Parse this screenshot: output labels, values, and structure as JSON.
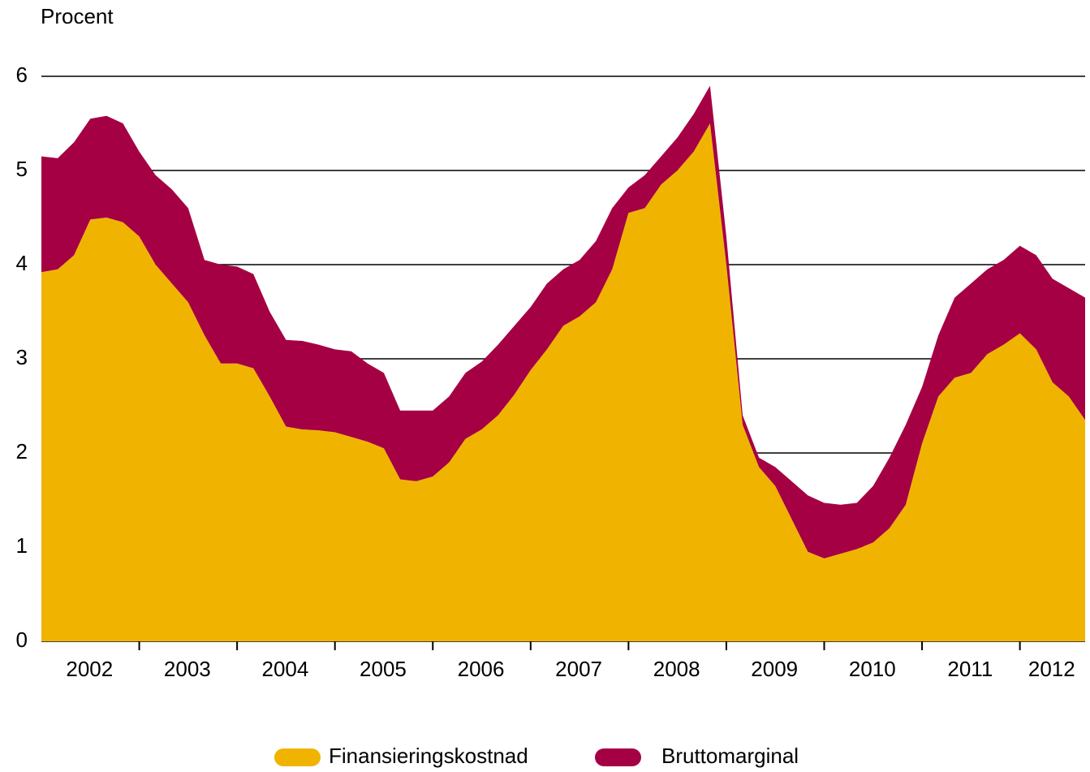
{
  "chart_data": {
    "type": "stacked_area",
    "y_axis_label": "Procent",
    "categories": [
      null,
      null,
      null,
      "2002",
      null,
      null,
      null,
      null,
      null,
      "2003",
      null,
      null,
      null,
      null,
      null,
      "2004",
      null,
      null,
      null,
      null,
      null,
      "2005",
      null,
      null,
      null,
      null,
      null,
      "2006",
      null,
      null,
      null,
      null,
      null,
      "2007",
      null,
      null,
      null,
      null,
      null,
      "2008",
      null,
      null,
      null,
      null,
      null,
      "2009",
      null,
      null,
      null,
      null,
      null,
      "2010",
      null,
      null,
      null,
      null,
      null,
      "2011",
      null,
      null,
      null,
      null,
      "2012",
      null,
      null
    ],
    "series": [
      {
        "name": "Finansieringskostnad",
        "color": "#f0b400",
        "values": [
          3.92,
          3.95,
          4.1,
          4.48,
          4.5,
          4.45,
          4.3,
          4.0,
          3.8,
          3.6,
          3.25,
          2.95,
          2.95,
          2.9,
          2.6,
          2.28,
          2.25,
          2.24,
          2.22,
          2.17,
          2.12,
          2.05,
          1.72,
          1.7,
          1.75,
          1.9,
          2.15,
          2.25,
          2.4,
          2.62,
          2.88,
          3.1,
          3.35,
          3.45,
          3.6,
          3.95,
          4.55,
          4.6,
          4.85,
          5.0,
          5.2,
          5.5,
          4.0,
          2.3,
          1.85,
          1.65,
          1.3,
          0.95,
          0.88,
          0.93,
          0.98,
          1.05,
          1.2,
          1.45,
          2.1,
          2.6,
          2.8,
          2.85,
          3.05,
          3.15,
          3.27,
          3.1,
          2.75,
          2.6,
          2.35
        ]
      },
      {
        "name": "Bruttomarginal",
        "color": "#a50044",
        "values": [
          1.23,
          1.18,
          1.2,
          1.07,
          1.08,
          1.05,
          0.9,
          0.95,
          1.0,
          1.0,
          0.8,
          1.05,
          1.03,
          1.0,
          0.9,
          0.92,
          0.94,
          0.91,
          0.88,
          0.91,
          0.83,
          0.8,
          0.73,
          0.75,
          0.7,
          0.7,
          0.7,
          0.72,
          0.75,
          0.73,
          0.67,
          0.7,
          0.6,
          0.6,
          0.65,
          0.65,
          0.27,
          0.35,
          0.3,
          0.35,
          0.4,
          0.4,
          0.3,
          0.1,
          0.1,
          0.2,
          0.4,
          0.6,
          0.59,
          0.52,
          0.49,
          0.6,
          0.75,
          0.85,
          0.6,
          0.65,
          0.85,
          0.95,
          0.9,
          0.9,
          0.93,
          1.0,
          1.1,
          1.15,
          1.3
        ]
      }
    ],
    "ylim": [
      0,
      6
    ],
    "yticks": [
      0,
      1,
      2,
      3,
      4,
      5,
      6
    ],
    "grid": true,
    "legend": "bottom"
  }
}
